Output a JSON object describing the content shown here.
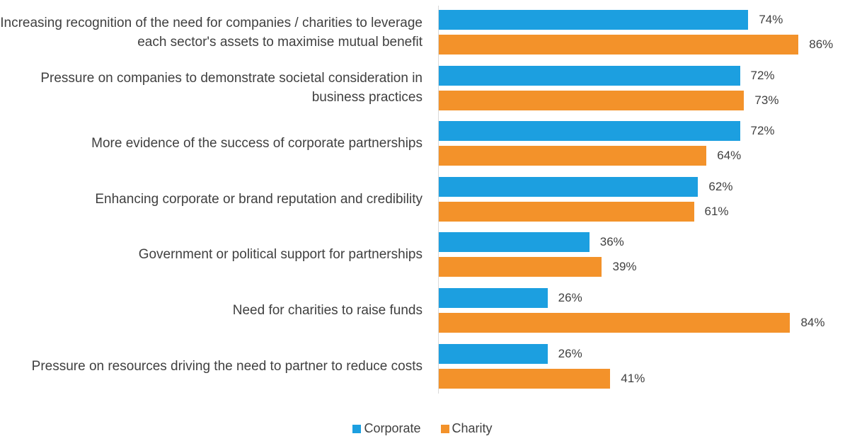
{
  "chart_data": {
    "type": "bar",
    "orientation": "horizontal",
    "categories": [
      "Increasing recognition of the need for companies / charities to leverage each sector's assets to maximise  mutual benefit",
      "Pressure on companies to demonstrate societal consideration in business practices",
      "More evidence of the success of corporate partnerships",
      "Enhancing corporate or brand reputation and credibility",
      "Government or political support for partnerships",
      "Need for charities to raise funds",
      "Pressure on resources driving the need to partner to reduce costs"
    ],
    "series": [
      {
        "name": "Corporate",
        "color": "#1c9fe0",
        "values": [
          74,
          72,
          72,
          62,
          36,
          26,
          26
        ],
        "value_labels": [
          "74%",
          "72%",
          "72%",
          "62%",
          "36%",
          "26%",
          "26%"
        ]
      },
      {
        "name": "Charity",
        "color": "#f3922a",
        "values": [
          86,
          73,
          64,
          61,
          39,
          84,
          41
        ],
        "value_labels": [
          "86%",
          "73%",
          "64%",
          "61%",
          "39%",
          "84%",
          "41%"
        ]
      }
    ],
    "legend": "bottom"
  }
}
